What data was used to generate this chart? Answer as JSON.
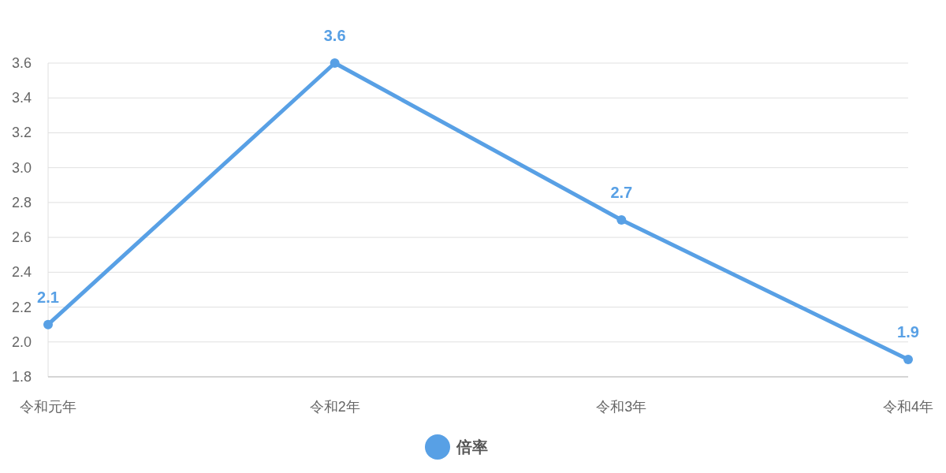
{
  "chart_data": {
    "type": "line",
    "categories": [
      "令和元年",
      "令和2年",
      "令和3年",
      "令和4年"
    ],
    "series": [
      {
        "name": "倍率",
        "color": "#58a0e5",
        "values": [
          2.1,
          3.6,
          2.7,
          1.9
        ]
      }
    ],
    "ylim": [
      1.8,
      3.6
    ],
    "yticks": [
      1.8,
      {
        "value": 2,
        "label": "2.0"
      },
      2.2,
      2.4,
      2.6,
      2.8,
      {
        "value": 3,
        "label": "3.0"
      },
      3.2,
      3.4,
      3.6
    ],
    "grid": "y",
    "legend": "bottom",
    "marker": "circle",
    "data_labels": true
  }
}
